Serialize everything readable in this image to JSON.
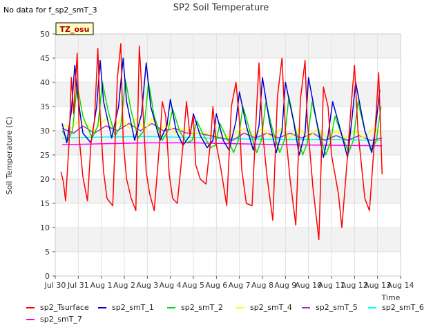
{
  "chart_data": {
    "type": "line",
    "title": "SP2 Soil Temperature",
    "ylabel": "Soil Temperature (C)",
    "xlabel": "Time",
    "ylim": [
      0,
      50
    ],
    "yticks": [
      0,
      5,
      10,
      15,
      20,
      25,
      30,
      35,
      40,
      45,
      50
    ],
    "xlim": [
      0,
      15
    ],
    "xticks": [
      {
        "x": 0,
        "label": "Jul 30"
      },
      {
        "x": 1,
        "label": "Jul 31"
      },
      {
        "x": 2,
        "label": "Aug 1"
      },
      {
        "x": 3,
        "label": "Aug 2"
      },
      {
        "x": 4,
        "label": "Aug 3"
      },
      {
        "x": 5,
        "label": "Aug 4"
      },
      {
        "x": 6,
        "label": "Aug 5"
      },
      {
        "x": 7,
        "label": "Aug 6"
      },
      {
        "x": 8,
        "label": "Aug 7"
      },
      {
        "x": 9,
        "label": "Aug 8"
      },
      {
        "x": 10,
        "label": "Aug 9"
      },
      {
        "x": 11,
        "label": "Aug 10"
      },
      {
        "x": 12,
        "label": "Aug 11"
      },
      {
        "x": 13,
        "label": "Aug 12"
      },
      {
        "x": 14,
        "label": "Aug 13"
      },
      {
        "x": 15,
        "label": "Aug 14"
      }
    ],
    "background_bands": true,
    "legend_position": "bottom",
    "series": [
      {
        "name": "sp2_Tsurface",
        "color": "#ff0000",
        "x": [
          0.25,
          0.35,
          0.45,
          0.6,
          0.7,
          0.8,
          0.95,
          1.05,
          1.2,
          1.4,
          1.55,
          1.7,
          1.85,
          1.95,
          2.1,
          2.25,
          2.5,
          2.7,
          2.85,
          2.95,
          3.1,
          3.3,
          3.5,
          3.65,
          3.8,
          3.95,
          4.1,
          4.3,
          4.55,
          4.65,
          4.8,
          4.95,
          5.1,
          5.3,
          5.55,
          5.7,
          5.85,
          6.0,
          6.1,
          6.3,
          6.55,
          6.75,
          6.85,
          7.0,
          7.2,
          7.45,
          7.65,
          7.85,
          8.0,
          8.1,
          8.3,
          8.55,
          8.75,
          8.85,
          9.0,
          9.2,
          9.45,
          9.65,
          9.85,
          10.0,
          10.2,
          10.45,
          10.65,
          10.85,
          10.95,
          11.2,
          11.45,
          11.65,
          11.85,
          12.0,
          12.3,
          12.45,
          12.7,
          12.85,
          13.0,
          13.15,
          13.45,
          13.65,
          13.85,
          14.05,
          14.2
        ],
        "values": [
          21.5,
          19.5,
          15.5,
          27.5,
          41,
          33.5,
          46,
          28,
          20.5,
          15.5,
          27.5,
          32,
          47,
          33,
          21.5,
          16,
          14.5,
          41,
          48,
          28,
          20,
          16,
          13.5,
          47.5,
          35,
          21.5,
          17,
          13.5,
          28.5,
          36,
          33,
          21,
          16,
          15,
          27,
          36,
          29,
          33,
          23,
          20,
          19,
          28,
          35,
          27,
          22,
          14.5,
          35,
          40,
          32,
          22,
          15,
          14.5,
          35,
          44,
          30,
          20.5,
          11.5,
          37,
          45,
          30,
          20,
          10.5,
          36.5,
          44.5,
          32,
          18,
          7.5,
          39,
          35,
          25,
          17,
          10,
          25,
          35,
          43.5,
          30,
          16,
          13.5,
          27,
          42,
          21
        ]
      },
      {
        "name": "sp2_smT_1",
        "color": "#0000cc",
        "x": [
          0.3,
          0.5,
          0.7,
          0.85,
          0.95,
          1.2,
          1.55,
          1.8,
          1.95,
          2.1,
          2.45,
          2.75,
          2.95,
          3.1,
          3.45,
          3.75,
          3.95,
          4.15,
          4.55,
          4.85,
          5.0,
          5.25,
          5.55,
          5.85,
          6.0,
          6.3,
          6.6,
          6.85,
          7.0,
          7.3,
          7.55,
          7.85,
          8.0,
          8.3,
          8.6,
          8.85,
          9.0,
          9.3,
          9.6,
          9.85,
          10.0,
          10.35,
          10.6,
          10.85,
          11.0,
          11.35,
          11.65,
          11.85,
          12.05,
          12.4,
          12.7,
          12.9,
          13.05,
          13.45,
          13.75,
          13.9,
          14.1
        ],
        "values": [
          31.5,
          27.5,
          34,
          43.5,
          38,
          29.5,
          27.5,
          35,
          44.5,
          36,
          28.5,
          35,
          45,
          36,
          28,
          33.5,
          44,
          35,
          28,
          31,
          36.5,
          30,
          27,
          29,
          33.5,
          29,
          26.5,
          28,
          33.5,
          28,
          26,
          32,
          38,
          31,
          26,
          31,
          41,
          32,
          25.5,
          30,
          40,
          32,
          25,
          29.5,
          41,
          32,
          24.5,
          29,
          36,
          30,
          24.5,
          33,
          40,
          30,
          25.5,
          30,
          38.5
        ]
      },
      {
        "name": "sp2_smT_2",
        "color": "#00dd00",
        "x": [
          0.3,
          0.55,
          0.75,
          0.95,
          1.2,
          1.6,
          1.85,
          2.05,
          2.3,
          2.6,
          2.85,
          3.05,
          3.3,
          3.6,
          3.85,
          4.05,
          4.3,
          4.65,
          4.9,
          5.1,
          5.4,
          5.7,
          5.95,
          6.15,
          6.45,
          6.75,
          6.95,
          7.15,
          7.45,
          7.75,
          7.95,
          8.15,
          8.45,
          8.75,
          8.95,
          9.15,
          9.45,
          9.75,
          9.95,
          10.15,
          10.45,
          10.75,
          10.95,
          11.15,
          11.45,
          11.75,
          11.95,
          12.15,
          12.45,
          12.75,
          12.95,
          13.15,
          13.45,
          13.75,
          13.95,
          14.15
        ],
        "values": [
          30,
          28,
          30,
          39.5,
          33,
          28.5,
          31,
          40,
          34,
          29,
          31,
          40.5,
          34,
          28.5,
          30,
          40,
          33,
          28,
          30,
          34.5,
          30,
          27.5,
          28,
          32,
          29,
          26.5,
          27,
          31.5,
          28.5,
          25.5,
          28,
          35,
          30,
          25.5,
          28,
          36,
          30,
          25.5,
          28,
          37,
          30,
          25,
          27.5,
          36,
          30,
          25,
          27.5,
          33,
          29,
          25.5,
          28,
          36,
          30,
          26,
          28,
          35
        ]
      },
      {
        "name": "sp2_smT_4",
        "color": "#ffff00",
        "x": [
          0.3,
          0.7,
          1.0,
          1.3,
          1.7,
          2.2,
          2.5,
          2.9,
          3.2,
          3.5,
          3.9,
          4.2,
          4.5,
          4.9,
          5.2,
          5.6,
          6.0,
          6.5,
          7.0,
          7.4,
          7.8,
          8.2,
          8.6,
          9.0,
          9.4,
          9.8,
          10.2,
          10.6,
          11.0,
          11.4,
          11.8,
          12.2,
          12.6,
          13.0,
          13.4,
          13.8,
          14.2
        ],
        "values": [
          31.5,
          30.5,
          32,
          31.5,
          30,
          32.5,
          30.5,
          32.5,
          30.5,
          32.5,
          30,
          32.5,
          30,
          31.5,
          29.5,
          30.5,
          29.5,
          29.5,
          29,
          28.5,
          29.5,
          30.5,
          29,
          30.5,
          28.5,
          30.5,
          28.5,
          30.5,
          28.5,
          30.5,
          28.5,
          30,
          28.5,
          30,
          28.5,
          30.5,
          29.5
        ]
      },
      {
        "name": "sp2_smT_5",
        "color": "#9933cc",
        "x": [
          0.3,
          0.8,
          1.2,
          1.7,
          2.2,
          2.7,
          3.2,
          3.7,
          4.2,
          4.7,
          5.2,
          5.7,
          6.2,
          6.7,
          7.2,
          7.7,
          8.2,
          8.7,
          9.2,
          9.7,
          10.2,
          10.7,
          11.2,
          11.7,
          12.2,
          12.7,
          13.2,
          13.7,
          14.2
        ],
        "values": [
          30.5,
          29.5,
          31,
          29.5,
          31,
          30,
          31.5,
          30,
          31.5,
          30,
          30.5,
          29.5,
          29.5,
          29,
          28.5,
          28,
          29.5,
          28.5,
          29.5,
          28.5,
          29.5,
          28.5,
          29.5,
          28,
          29,
          28,
          29,
          28,
          28.5
        ]
      },
      {
        "name": "sp2_smT_6",
        "color": "#00ffff",
        "x": [
          0.3,
          2.0,
          4.0,
          6.0,
          8.0,
          10.0,
          12.0,
          14.2
        ],
        "values": [
          28.5,
          28.7,
          28.8,
          28.6,
          28.3,
          28.2,
          28.2,
          28.0
        ]
      },
      {
        "name": "sp2_smT_7",
        "color": "#ff00ff",
        "x": [
          0.3,
          2.0,
          4.0,
          6.0,
          8.0,
          10.0,
          12.0,
          14.2
        ],
        "values": [
          27.1,
          27.3,
          27.5,
          27.5,
          27.3,
          27.1,
          27.0,
          26.9
        ]
      }
    ]
  },
  "annotations": {
    "no_data_text": "No data for f_sp2_smT_3",
    "tz_label": "TZ_osu"
  },
  "legend": [
    {
      "label": "sp2_Tsurface",
      "color": "#ff0000"
    },
    {
      "label": "sp2_smT_1",
      "color": "#0000cc"
    },
    {
      "label": "sp2_smT_2",
      "color": "#00dd00"
    },
    {
      "label": "sp2_smT_4",
      "color": "#ffff00"
    },
    {
      "label": "sp2_smT_5",
      "color": "#9933cc"
    },
    {
      "label": "sp2_smT_6",
      "color": "#00ffff"
    },
    {
      "label": "sp2_smT_7",
      "color": "#ff00ff"
    }
  ]
}
